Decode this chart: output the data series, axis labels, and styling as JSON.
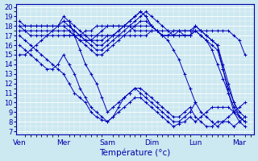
{
  "xlabel": "Température (°c)",
  "bg_color": "#cce8f0",
  "grid_color": "#aaccdd",
  "line_color": "#0000bb",
  "ylim": [
    7,
    20
  ],
  "yticks": [
    7,
    8,
    9,
    10,
    11,
    12,
    13,
    14,
    15,
    16,
    17,
    18,
    19,
    20
  ],
  "x_labels": [
    "Ven",
    "Mer",
    "Sam",
    "Dim",
    "Lun",
    "Mar"
  ],
  "x_day_positions": [
    0,
    24,
    48,
    72,
    96,
    120
  ],
  "xlim": [
    -2,
    128
  ],
  "lines": [
    {
      "x": [
        0,
        3,
        6,
        9,
        12,
        15,
        18,
        21,
        24,
        27,
        30,
        33,
        36,
        39,
        42,
        45,
        48,
        51,
        54,
        57,
        60,
        63,
        66,
        69,
        72,
        75,
        78,
        81,
        84,
        87,
        90,
        93,
        96,
        99,
        102,
        105,
        108,
        111,
        114,
        117,
        120,
        123
      ],
      "y": [
        17,
        16.5,
        16,
        15.5,
        15,
        14.5,
        14,
        13.5,
        13,
        12,
        11,
        10.5,
        10,
        9,
        8.5,
        8.2,
        8,
        8.5,
        9,
        9.5,
        10,
        10.5,
        10.5,
        10,
        9.5,
        9,
        8.5,
        8,
        7.5,
        7.8,
        8,
        8.5,
        8,
        8.5,
        9,
        9.5,
        9.5,
        9.5,
        9.5,
        9,
        8.5,
        8
      ]
    },
    {
      "x": [
        0,
        3,
        6,
        9,
        12,
        15,
        18,
        21,
        24,
        27,
        30,
        33,
        36,
        39,
        42,
        45,
        48,
        51,
        54,
        57,
        60,
        63,
        66,
        69,
        72,
        75,
        78,
        81,
        84,
        87,
        90,
        93,
        96,
        99,
        102,
        105,
        108,
        111,
        114,
        117,
        120,
        123
      ],
      "y": [
        16,
        15.5,
        15,
        14.5,
        14,
        13.5,
        13.5,
        14,
        15,
        14,
        13,
        11.5,
        10.5,
        9.5,
        9,
        8.5,
        8,
        8.5,
        9.5,
        10.5,
        11,
        11.5,
        11,
        10.5,
        10,
        9.5,
        9,
        8.5,
        8,
        8,
        8.5,
        9,
        10,
        9,
        8.5,
        8,
        7.5,
        8,
        8.5,
        9,
        9.5,
        10
      ]
    },
    {
      "x": [
        0,
        3,
        6,
        9,
        12,
        15,
        18,
        21,
        24,
        27,
        30,
        33,
        36,
        39,
        42,
        45,
        48,
        51,
        54,
        57,
        60,
        63,
        66,
        69,
        72,
        75,
        78,
        81,
        84,
        87,
        90,
        93,
        96,
        99,
        102,
        105,
        108,
        111,
        114,
        117,
        120,
        123
      ],
      "y": [
        15,
        15,
        15.5,
        16,
        16.5,
        17,
        17.5,
        18,
        19,
        18.5,
        17,
        15.5,
        14,
        13,
        12,
        10.5,
        9,
        9.5,
        10,
        10.5,
        11,
        11.5,
        11.5,
        11,
        10.5,
        10,
        9.5,
        9,
        8.5,
        8.5,
        9,
        9.5,
        8.5,
        8,
        7.5,
        7.5,
        8,
        8,
        8,
        7.5,
        8,
        8.5
      ]
    },
    {
      "x": [
        0,
        3,
        6,
        9,
        12,
        15,
        18,
        21,
        24,
        27,
        30,
        33,
        36,
        39,
        42,
        45,
        48,
        51,
        54,
        57,
        60,
        63,
        66,
        69,
        72,
        75,
        78,
        81,
        84,
        87,
        90,
        93,
        96,
        99,
        102,
        105,
        108,
        111,
        114,
        117,
        120,
        123
      ],
      "y": [
        18,
        17.5,
        17,
        17,
        17,
        17,
        17,
        17,
        17,
        17,
        17,
        17,
        17,
        17,
        17,
        17,
        17,
        17,
        17,
        17,
        17,
        17,
        17,
        17,
        17.5,
        17.5,
        17.5,
        17.5,
        17.5,
        17.5,
        17.5,
        17.5,
        17.5,
        17.5,
        17.5,
        17.5,
        17.5,
        17.5,
        17.5,
        17,
        16.5,
        15
      ]
    },
    {
      "x": [
        0,
        3,
        6,
        9,
        12,
        15,
        18,
        21,
        24,
        27,
        30,
        33,
        36,
        39,
        42,
        45,
        48,
        51,
        54,
        57,
        60,
        63,
        66,
        69,
        72,
        75,
        78,
        81,
        84,
        87,
        90,
        93,
        96,
        99,
        102,
        105,
        108,
        111,
        114,
        117,
        120,
        123
      ],
      "y": [
        18.5,
        18,
        18,
        18,
        18,
        18,
        18,
        18,
        18.5,
        18.5,
        18,
        17.5,
        17,
        16.5,
        16,
        16,
        16.5,
        17,
        17.5,
        18,
        18.5,
        19,
        19.5,
        19,
        18,
        17.5,
        17,
        17,
        17.5,
        17.5,
        17,
        17,
        18,
        17.5,
        17,
        16.5,
        16,
        13.5,
        11,
        9,
        8,
        7.5
      ]
    },
    {
      "x": [
        0,
        3,
        6,
        9,
        12,
        15,
        18,
        21,
        24,
        27,
        30,
        33,
        36,
        39,
        42,
        45,
        48,
        51,
        54,
        57,
        60,
        63,
        66,
        69,
        72,
        75,
        78,
        81,
        84,
        87,
        90,
        93,
        96,
        99,
        102,
        105,
        108,
        111,
        114,
        117,
        120,
        123
      ],
      "y": [
        18,
        18,
        18,
        18,
        18,
        18,
        18,
        18,
        18,
        18,
        17.5,
        17,
        16.5,
        16.5,
        16.5,
        16.5,
        17,
        17,
        17.5,
        18,
        18.5,
        19,
        19.5,
        19,
        18,
        17.5,
        17,
        17,
        17,
        17.5,
        17.5,
        17.5,
        18,
        17.5,
        17,
        16.5,
        16,
        14,
        12,
        10,
        8.5,
        8
      ]
    },
    {
      "x": [
        0,
        3,
        6,
        9,
        12,
        15,
        18,
        21,
        24,
        27,
        30,
        33,
        36,
        39,
        42,
        45,
        48,
        51,
        54,
        57,
        60,
        63,
        66,
        69,
        72,
        75,
        78,
        81,
        84,
        87,
        90,
        93,
        96,
        99,
        102,
        105,
        108,
        111,
        114,
        117,
        120,
        123
      ],
      "y": [
        17.5,
        17.5,
        17.5,
        17.5,
        17.5,
        17.5,
        17.5,
        17.5,
        17.5,
        17.5,
        17,
        16.5,
        16,
        15.5,
        15,
        15,
        15.5,
        16,
        16.5,
        17,
        17.5,
        18,
        18.5,
        18.5,
        18,
        17.5,
        17,
        17,
        17,
        17,
        17,
        17,
        17.5,
        17,
        16.5,
        16,
        15.5,
        13.5,
        11.5,
        10,
        9,
        8.5
      ]
    },
    {
      "x": [
        24,
        27,
        30,
        33,
        36,
        39,
        42,
        45,
        48,
        51,
        54,
        57,
        60,
        63,
        66,
        69,
        72,
        75,
        78,
        81,
        84,
        87,
        90,
        93,
        96,
        99,
        102,
        105,
        108,
        111,
        114,
        117,
        120,
        123
      ],
      "y": [
        18.5,
        18,
        17.5,
        17,
        16.5,
        16,
        15.5,
        15.5,
        16,
        16.5,
        17,
        17.5,
        18,
        18.5,
        19,
        19.5,
        19,
        18.5,
        18,
        17.5,
        17,
        17,
        17,
        17,
        17.5,
        17,
        16.5,
        15.5,
        14,
        12.5,
        11,
        9.5,
        8.5,
        8
      ]
    },
    {
      "x": [
        24,
        27,
        30,
        33,
        36,
        39,
        42,
        45,
        48,
        51,
        54,
        57,
        60,
        63,
        66,
        69,
        72,
        75,
        78,
        81,
        84,
        87,
        90,
        93,
        96
      ],
      "y": [
        18,
        17.5,
        17,
        16.5,
        16.5,
        16.5,
        17,
        17.5,
        18,
        18,
        18,
        18,
        18,
        18,
        18,
        18,
        18,
        17.5,
        17,
        16.5,
        15.5,
        14.5,
        13,
        11.5,
        10
      ]
    },
    {
      "x": [
        24,
        27,
        30,
        33,
        36,
        39,
        42,
        45,
        48,
        51,
        54,
        57,
        60,
        63,
        66,
        69,
        72
      ],
      "y": [
        17,
        17,
        17,
        17,
        17.5,
        17.5,
        18,
        18,
        18,
        18,
        18,
        18,
        18,
        17.5,
        17.5,
        17.5,
        17.5
      ]
    }
  ],
  "figsize": [
    3.2,
    2.0
  ],
  "dpi": 100
}
